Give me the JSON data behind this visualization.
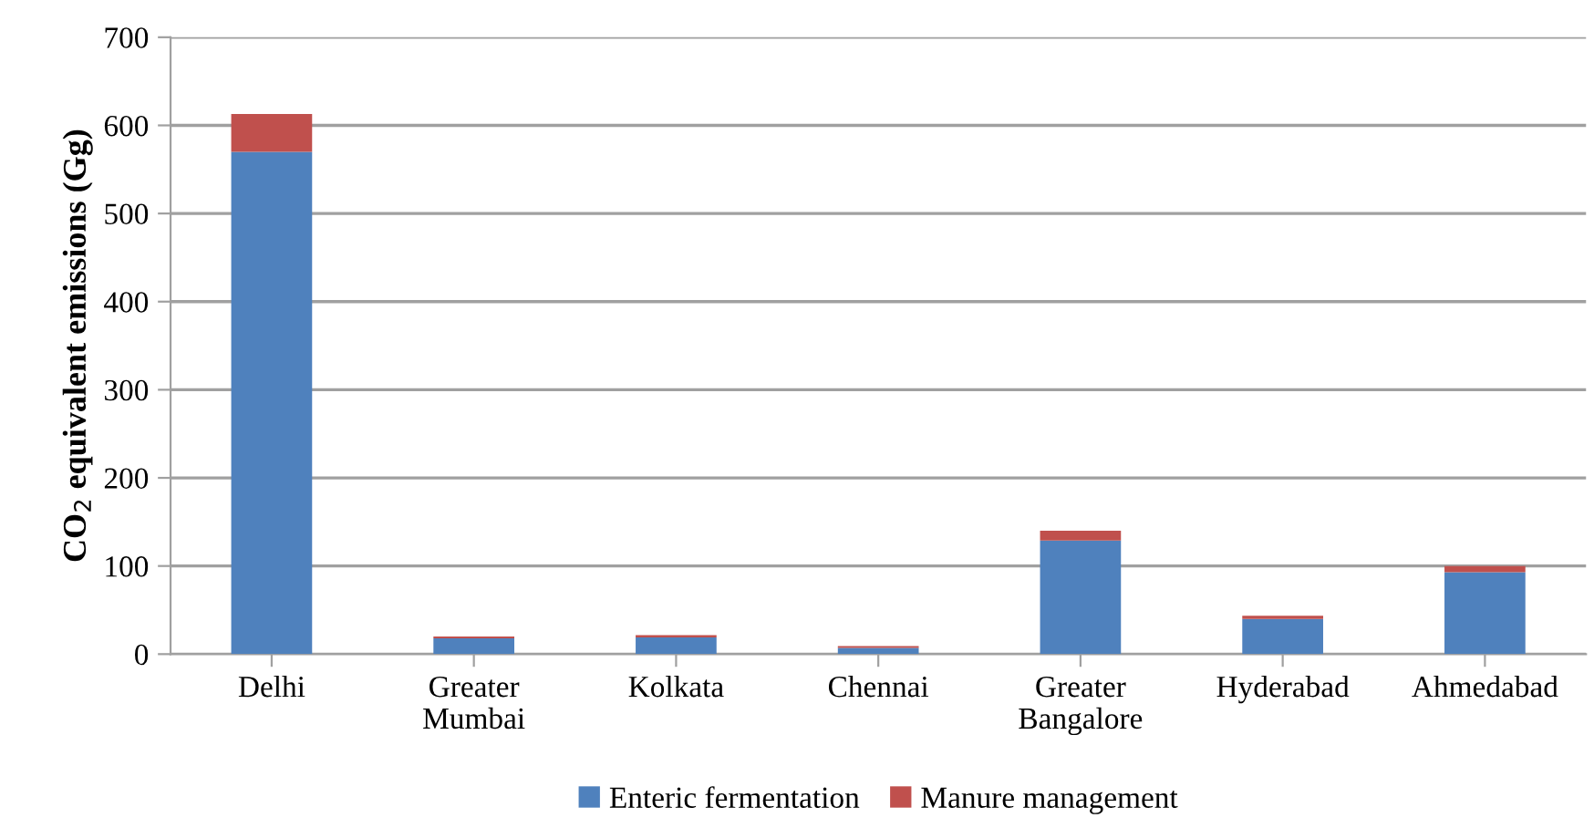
{
  "chart_data": {
    "type": "bar",
    "stacked": true,
    "ylabel": "CO$_{2}$ equivalent emissions (Gg)",
    "categories": [
      "Delhi",
      "Greater\nMumbai",
      "Kolkata",
      "Chennai",
      "Greater\nBangalore",
      "Hyderabad",
      "Ahmedabad"
    ],
    "series": [
      {
        "name": "Enteric fermentation",
        "color": "#4f81bd",
        "values": [
          570,
          18,
          19,
          7,
          129,
          40,
          93
        ]
      },
      {
        "name": "Manure management",
        "color": "#c0504d",
        "values": [
          43,
          2,
          2.5,
          2,
          11,
          3.5,
          7
        ]
      }
    ],
    "ylim": [
      0,
      700
    ],
    "yticks": [
      0,
      100,
      200,
      300,
      400,
      500,
      600,
      700
    ],
    "grid": "y",
    "legend": "bottom"
  }
}
